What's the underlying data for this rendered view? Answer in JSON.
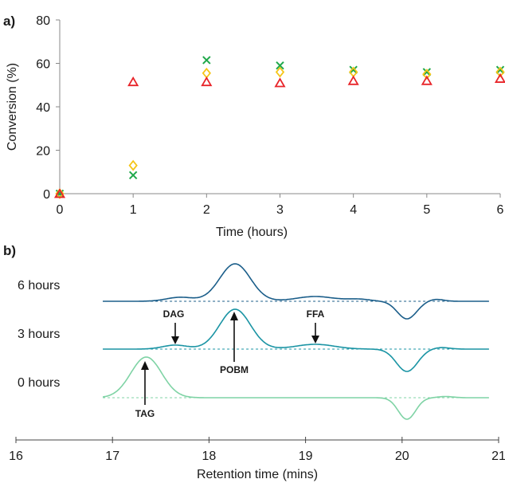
{
  "chart_data": [
    {
      "type": "scatter",
      "panel_label": "a)",
      "xlabel": "Time (hours)",
      "ylabel": "Conversion (%)",
      "xlim": [
        0,
        6
      ],
      "ylim": [
        0,
        80
      ],
      "xticks": [
        "0",
        "1",
        "2",
        "3",
        "4",
        "5",
        "6"
      ],
      "yticks": [
        "0",
        "20",
        "40",
        "60",
        "80"
      ],
      "grid": false,
      "legend": "none",
      "series": [
        {
          "marker": "triangle",
          "color": "#e8252a",
          "x": [
            0,
            1,
            2,
            3,
            4,
            5,
            6
          ],
          "y": [
            0,
            51.5,
            51.5,
            51,
            52,
            52,
            53
          ]
        },
        {
          "marker": "diamond",
          "color": "#f5c518",
          "x": [
            0,
            1,
            2,
            3,
            4,
            5,
            6
          ],
          "y": [
            0,
            13,
            55.5,
            56,
            56,
            55,
            56
          ]
        },
        {
          "marker": "cross",
          "color": "#1fa84a",
          "x": [
            0,
            1,
            2,
            3,
            4,
            5,
            6
          ],
          "y": [
            0,
            8.5,
            61.5,
            59,
            57,
            56,
            57
          ]
        }
      ]
    },
    {
      "type": "line",
      "panel_label": "b)",
      "xlabel": "Retention time (mins)",
      "xlim": [
        16,
        21
      ],
      "xticks": [
        "16",
        "17",
        "18",
        "19",
        "20",
        "21"
      ],
      "grid": false,
      "legend": "none",
      "series": [
        {
          "label": "6 hours",
          "color": "#1b5e8a",
          "peaks": [
            {
              "center": 17.7,
              "height": 5,
              "width": 0.14
            },
            {
              "center": 18.27,
              "height": 47,
              "width": 0.16
            },
            {
              "center": 19.1,
              "height": 6,
              "width": 0.2
            },
            {
              "center": 19.55,
              "height": 2.5,
              "width": 0.12
            },
            {
              "center": 20.05,
              "height": -22,
              "width": 0.1
            },
            {
              "center": 20.35,
              "height": 2.5,
              "width": 0.08
            }
          ]
        },
        {
          "label": "3 hours",
          "color": "#1a94a4",
          "peaks": [
            {
              "center": 17.65,
              "height": 5,
              "width": 0.13
            },
            {
              "center": 18.27,
              "height": 50,
              "width": 0.16
            },
            {
              "center": 19.1,
              "height": 6,
              "width": 0.2
            },
            {
              "center": 20.05,
              "height": -28,
              "width": 0.11
            },
            {
              "center": 20.4,
              "height": 2,
              "width": 0.09
            }
          ]
        },
        {
          "label": "0 hours",
          "color": "#7fd3a5",
          "peaks": [
            {
              "center": 17.35,
              "height": 51,
              "width": 0.16
            },
            {
              "center": 20.05,
              "height": -27,
              "width": 0.09
            },
            {
              "center": 20.45,
              "height": 1.5,
              "width": 0.08
            }
          ]
        }
      ],
      "annotations": [
        "DAG",
        "POBM",
        "FFA",
        "TAG"
      ]
    }
  ]
}
